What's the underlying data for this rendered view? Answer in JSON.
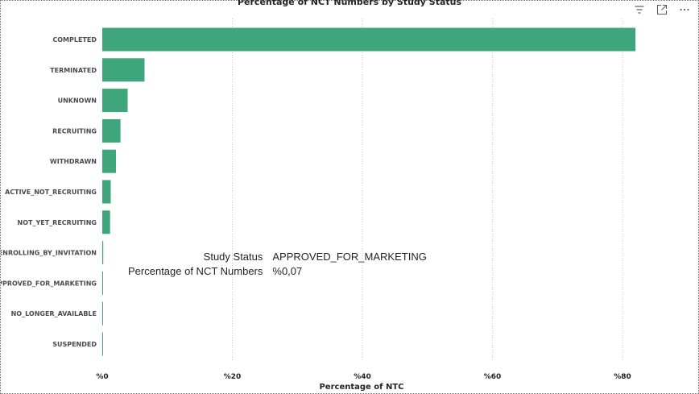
{
  "chart": {
    "title": "Percentage of NCT Numbers by Study Status"
  },
  "toolbar": {
    "icons": [
      "filter-icon",
      "focus-mode-icon",
      "more-options-icon"
    ]
  },
  "tooltip": {
    "label1": "Study Status",
    "value1": "APPROVED_FOR_MARKETING",
    "label2": "Percentage of NCT Numbers",
    "value2": "%0,07"
  },
  "colors": {
    "bar": "#3fa57c",
    "grid": "#c8c8c8"
  },
  "chart_data": {
    "type": "bar",
    "orientation": "horizontal",
    "title": "Percentage of NCT Numbers by Study Status",
    "xlabel": "Percentage of NTC",
    "ylabel": "",
    "categories": [
      "COMPLETED",
      "TERMINATED",
      "UNKNOWN",
      "RECRUITING",
      "WITHDRAWN",
      "ACTIVE_NOT_RECRUITING",
      "NOT_YET_RECRUITING",
      "ENROLLING_BY_INVITATION",
      "APPROVED_FOR_MARKETING",
      "NO_LONGER_AVAILABLE",
      "SUSPENDED"
    ],
    "values": [
      82.0,
      6.5,
      3.9,
      2.8,
      2.1,
      1.3,
      1.2,
      0.15,
      0.07,
      0.04,
      0.03
    ],
    "xlim": [
      0,
      85
    ],
    "xticks": [
      0,
      20,
      40,
      60,
      80
    ],
    "xtick_labels": [
      "%0",
      "%20",
      "%40",
      "%60",
      "%80"
    ],
    "grid": "vertical-dotted",
    "legend": "none"
  }
}
